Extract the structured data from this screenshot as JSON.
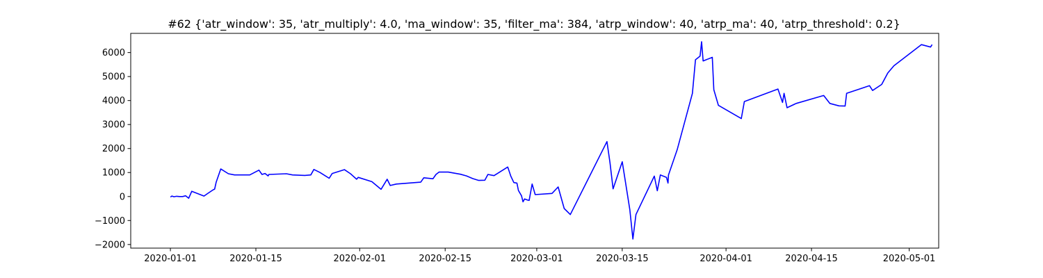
{
  "chart_data": {
    "type": "line",
    "title": "#62 {'atr_window': 35, 'atr_multiply': 4.0, 'ma_window': 35, 'filter_ma': 384, 'atrp_window': 40, 'atrp_ma': 40, 'atrp_threshold': 0.2}",
    "xlabel": "",
    "ylabel": "",
    "x_axis": {
      "type": "date",
      "range": [
        "2019-12-25T12:00",
        "2020-05-05T20:00"
      ],
      "ticks": [
        "2020-01-01",
        "2020-01-15",
        "2020-02-01",
        "2020-02-15",
        "2020-03-01",
        "2020-03-15",
        "2020-04-01",
        "2020-04-15",
        "2020-05-01"
      ]
    },
    "y_axis": {
      "range": [
        -2150,
        6800
      ],
      "ticks": [
        -2000,
        -1000,
        0,
        1000,
        2000,
        3000,
        4000,
        5000,
        6000
      ]
    },
    "grid": false,
    "legend": "none",
    "series": [
      {
        "color": "#0000ff",
        "points": [
          [
            "2020-01-01T00:00",
            -20
          ],
          [
            "2020-01-01T06:00",
            20
          ],
          [
            "2020-01-01T14:00",
            -10
          ],
          [
            "2020-01-02T00:00",
            10
          ],
          [
            "2020-01-02T12:00",
            0
          ],
          [
            "2020-01-03T00:00",
            0
          ],
          [
            "2020-01-03T12:00",
            30
          ],
          [
            "2020-01-04T00:00",
            -70
          ],
          [
            "2020-01-04T12:00",
            220
          ],
          [
            "2020-01-06T12:00",
            20
          ],
          [
            "2020-01-07T00:00",
            110
          ],
          [
            "2020-01-08T00:00",
            280
          ],
          [
            "2020-01-08T06:00",
            310
          ],
          [
            "2020-01-08T12:00",
            600
          ],
          [
            "2020-01-09T06:00",
            1150
          ],
          [
            "2020-01-10T12:00",
            950
          ],
          [
            "2020-01-11T12:00",
            900
          ],
          [
            "2020-01-14T00:00",
            900
          ],
          [
            "2020-01-15T12:00",
            1100
          ],
          [
            "2020-01-16T00:00",
            920
          ],
          [
            "2020-01-16T12:00",
            960
          ],
          [
            "2020-01-17T00:00",
            860
          ],
          [
            "2020-01-17T03:00",
            920
          ],
          [
            "2020-01-20T00:00",
            950
          ],
          [
            "2020-01-21T00:00",
            900
          ],
          [
            "2020-01-23T00:00",
            880
          ],
          [
            "2020-01-24T00:00",
            900
          ],
          [
            "2020-01-24T12:00",
            1130
          ],
          [
            "2020-01-25T12:00",
            1000
          ],
          [
            "2020-01-27T00:00",
            760
          ],
          [
            "2020-01-27T12:00",
            960
          ],
          [
            "2020-01-29T12:00",
            1120
          ],
          [
            "2020-01-30T12:00",
            950
          ],
          [
            "2020-01-31T12:00",
            720
          ],
          [
            "2020-01-31T18:00",
            800
          ],
          [
            "2020-02-03T00:00",
            620
          ],
          [
            "2020-02-04T12:00",
            300
          ],
          [
            "2020-02-05T12:00",
            720
          ],
          [
            "2020-02-06T00:00",
            460
          ],
          [
            "2020-02-07T00:00",
            520
          ],
          [
            "2020-02-11T00:00",
            600
          ],
          [
            "2020-02-11T12:00",
            780
          ],
          [
            "2020-02-13T00:00",
            740
          ],
          [
            "2020-02-13T12:00",
            920
          ],
          [
            "2020-02-14T00:00",
            1020
          ],
          [
            "2020-02-15T12:00",
            1020
          ],
          [
            "2020-02-17T12:00",
            930
          ],
          [
            "2020-02-18T12:00",
            860
          ],
          [
            "2020-02-19T12:00",
            750
          ],
          [
            "2020-02-20T12:00",
            670
          ],
          [
            "2020-02-21T12:00",
            680
          ],
          [
            "2020-02-22T00:00",
            920
          ],
          [
            "2020-02-23T00:00",
            870
          ],
          [
            "2020-02-25T06:00",
            1230
          ],
          [
            "2020-02-25T18:00",
            850
          ],
          [
            "2020-02-26T06:00",
            580
          ],
          [
            "2020-02-26T18:00",
            560
          ],
          [
            "2020-02-27T00:00",
            250
          ],
          [
            "2020-02-27T12:00",
            30
          ],
          [
            "2020-02-27T18:00",
            -220
          ],
          [
            "2020-02-28T00:00",
            -100
          ],
          [
            "2020-02-28T12:00",
            -150
          ],
          [
            "2020-02-28T18:00",
            -160
          ],
          [
            "2020-02-29T06:00",
            520
          ],
          [
            "2020-02-29T18:00",
            80
          ],
          [
            "2020-03-03T12:00",
            130
          ],
          [
            "2020-03-04T12:00",
            400
          ],
          [
            "2020-03-05T12:00",
            -500
          ],
          [
            "2020-03-06T12:00",
            -750
          ],
          [
            "2020-03-12T12:00",
            2290
          ],
          [
            "2020-03-13T00:00",
            1400
          ],
          [
            "2020-03-13T12:00",
            320
          ],
          [
            "2020-03-15T00:00",
            1450
          ],
          [
            "2020-03-16T06:00",
            -550
          ],
          [
            "2020-03-16T18:00",
            -1770
          ],
          [
            "2020-03-17T06:00",
            -750
          ],
          [
            "2020-03-20T06:00",
            850
          ],
          [
            "2020-03-20T18:00",
            240
          ],
          [
            "2020-03-21T06:00",
            900
          ],
          [
            "2020-03-22T06:00",
            800
          ],
          [
            "2020-03-22T12:00",
            560
          ],
          [
            "2020-03-22T14:00",
            900
          ],
          [
            "2020-03-24T00:00",
            1950
          ],
          [
            "2020-03-26T12:00",
            4300
          ],
          [
            "2020-03-27T00:00",
            5700
          ],
          [
            "2020-03-27T18:00",
            5850
          ],
          [
            "2020-03-28T00:00",
            6450
          ],
          [
            "2020-03-28T06:00",
            5650
          ],
          [
            "2020-03-29T18:00",
            5800
          ],
          [
            "2020-03-30T00:00",
            4450
          ],
          [
            "2020-03-30T18:00",
            3800
          ],
          [
            "2020-04-03T12:00",
            3250
          ],
          [
            "2020-04-04T00:00",
            3960
          ],
          [
            "2020-04-09T12:00",
            4480
          ],
          [
            "2020-04-10T06:00",
            3920
          ],
          [
            "2020-04-10T12:00",
            4300
          ],
          [
            "2020-04-11T00:00",
            3700
          ],
          [
            "2020-04-12T12:00",
            3880
          ],
          [
            "2020-04-17T00:00",
            4210
          ],
          [
            "2020-04-18T00:00",
            3880
          ],
          [
            "2020-04-19T12:00",
            3780
          ],
          [
            "2020-04-20T12:00",
            3770
          ],
          [
            "2020-04-20T18:00",
            4300
          ],
          [
            "2020-04-24T12:00",
            4620
          ],
          [
            "2020-04-25T00:00",
            4420
          ],
          [
            "2020-04-26T12:00",
            4670
          ],
          [
            "2020-04-27T12:00",
            5150
          ],
          [
            "2020-04-28T12:00",
            5450
          ],
          [
            "2020-05-03T00:00",
            6330
          ],
          [
            "2020-05-04T12:00",
            6230
          ],
          [
            "2020-05-04T18:00",
            6330
          ]
        ]
      }
    ]
  }
}
